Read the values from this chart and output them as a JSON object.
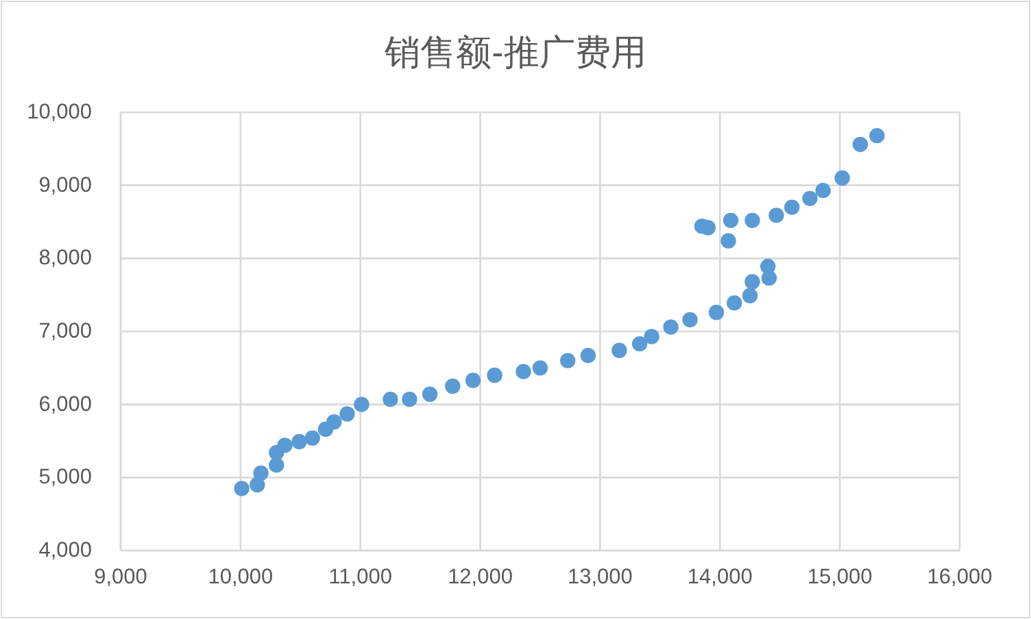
{
  "chart_data": {
    "type": "scatter",
    "title": "销售额-推广费用",
    "x": [
      10010,
      10140,
      10170,
      10300,
      10300,
      10370,
      10490,
      10600,
      10710,
      10780,
      10890,
      11010,
      11250,
      11410,
      11580,
      11770,
      11940,
      12120,
      12360,
      12500,
      12730,
      12900,
      13160,
      13330,
      13430,
      13590,
      13750,
      13970,
      14120,
      14250,
      14270,
      14410,
      14400,
      14070,
      13850,
      13900,
      14090,
      14270,
      14470,
      14600,
      14750,
      14860,
      15020,
      15170,
      15310
    ],
    "values": [
      4850,
      4900,
      5060,
      5170,
      5340,
      5440,
      5490,
      5540,
      5660,
      5760,
      5870,
      6000,
      6070,
      6070,
      6140,
      6250,
      6330,
      6400,
      6450,
      6500,
      6600,
      6670,
      6740,
      6830,
      6930,
      7060,
      7160,
      7260,
      7390,
      7490,
      7680,
      7730,
      7890,
      8240,
      8440,
      8420,
      8520,
      8520,
      8590,
      8700,
      8820,
      8930,
      9100,
      9560,
      9680
    ],
    "color": "#5b9bd5",
    "marker": "circle",
    "xlim": [
      9000,
      16000
    ],
    "xticks": [
      {
        "value": 9000,
        "label": "9,000"
      },
      {
        "value": 10000,
        "label": "10,000"
      },
      {
        "value": 11000,
        "label": "11,000"
      },
      {
        "value": 12000,
        "label": "12,000"
      },
      {
        "value": 13000,
        "label": "13,000"
      },
      {
        "value": 14000,
        "label": "14,000"
      },
      {
        "value": 15000,
        "label": "15,000"
      },
      {
        "value": 16000,
        "label": "16,000"
      }
    ],
    "ylim": [
      4000,
      10000
    ],
    "yticks": [
      {
        "value": 4000,
        "label": "4,000"
      },
      {
        "value": 5000,
        "label": "5,000"
      },
      {
        "value": 6000,
        "label": "6,000"
      },
      {
        "value": 7000,
        "label": "7,000"
      },
      {
        "value": 8000,
        "label": "8,000"
      },
      {
        "value": 9000,
        "label": "9,000"
      },
      {
        "value": 10000,
        "label": "10,000"
      }
    ],
    "grid": true
  }
}
